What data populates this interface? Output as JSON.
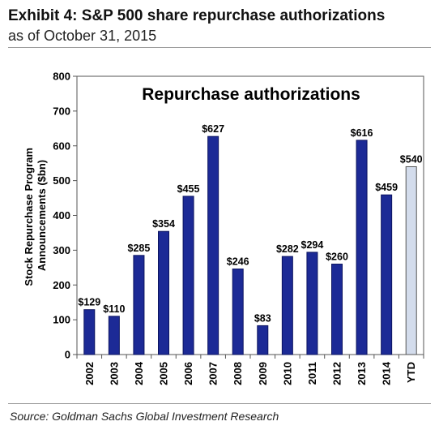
{
  "header": {
    "title": "Exhibit 4: S&P 500 share repurchase authorizations",
    "subtitle": "as of October 31, 2015"
  },
  "footer": {
    "source": "Source: Goldman Sachs Global Investment Research"
  },
  "colors": {
    "bar": "#1c2a96",
    "ytd_bar": "#d3dcec",
    "bar_stroke": "#0c1460"
  },
  "chart_data": {
    "type": "bar",
    "title": "Repurchase authorizations",
    "ylabel_lines": [
      "Stock Repurchase Program",
      "Announcements ($bn)"
    ],
    "xlabel": "",
    "ylim": [
      0,
      800
    ],
    "yticks": [
      0,
      100,
      200,
      300,
      400,
      500,
      600,
      700,
      800
    ],
    "grid": false,
    "categories": [
      "2002",
      "2003",
      "2004",
      "2005",
      "2006",
      "2007",
      "2008",
      "2009",
      "2010",
      "2011",
      "2012",
      "2013",
      "2014",
      "YTD"
    ],
    "values": [
      129,
      110,
      285,
      354,
      455,
      627,
      246,
      83,
      282,
      294,
      260,
      616,
      459,
      540
    ],
    "data_labels": [
      "$129",
      "$110",
      "$285",
      "$354",
      "$455",
      "$627",
      "$246",
      "$83",
      "$282",
      "$294",
      "$260",
      "$616",
      "$459",
      "$540"
    ],
    "highlight_category": "YTD"
  }
}
